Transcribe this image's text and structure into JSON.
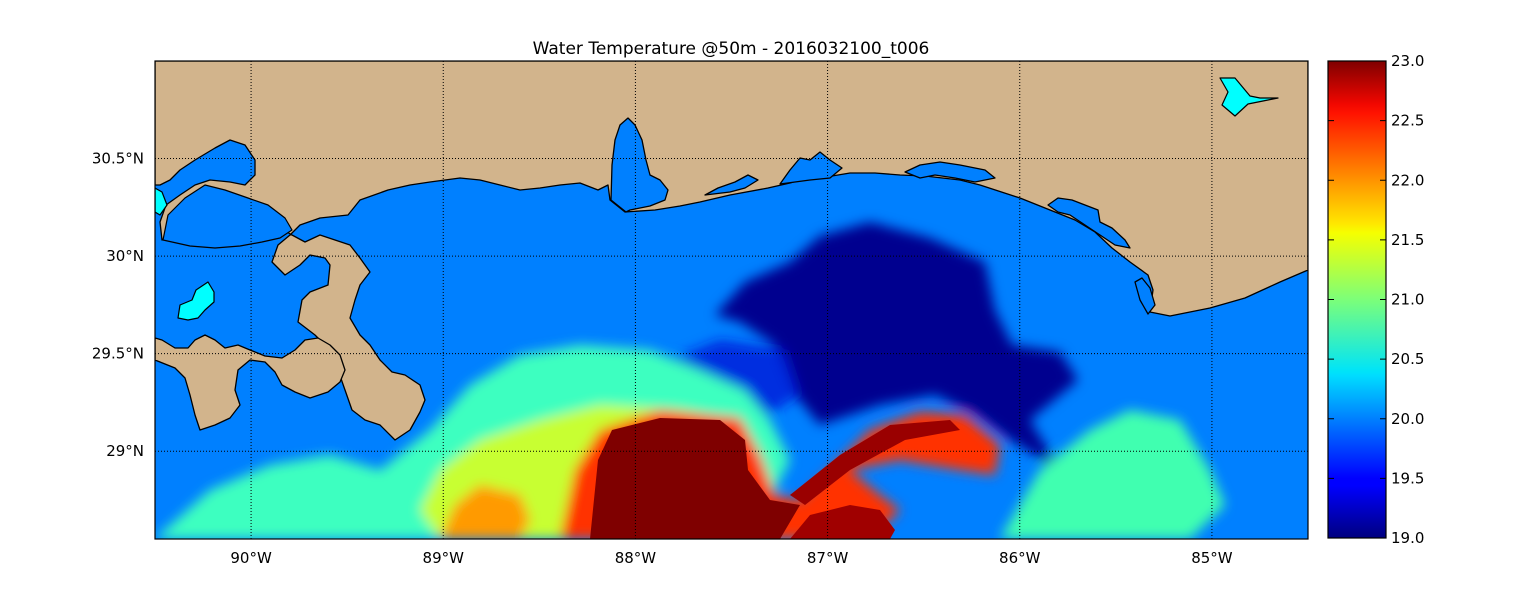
{
  "title": "Water Temperature @50m - 2016032100_t006",
  "map": {
    "lon_range": [
      -90.5,
      -84.5
    ],
    "lat_range": [
      28.55,
      31.0
    ],
    "gridlines": true,
    "land_color": "#d2b48c",
    "background_water_color": "#0080ff",
    "lake_color": "#00ffff",
    "coastline_color": "#000000",
    "lon_ticks": [
      {
        "value": -90,
        "label": "90°W"
      },
      {
        "value": -89,
        "label": "89°W"
      },
      {
        "value": -88,
        "label": "88°W"
      },
      {
        "value": -87,
        "label": "87°W"
      },
      {
        "value": -86,
        "label": "86°W"
      },
      {
        "value": -85,
        "label": "85°W"
      }
    ],
    "lat_ticks": [
      {
        "value": 30.5,
        "label": "30.5°N"
      },
      {
        "value": 30.0,
        "label": "30°N"
      },
      {
        "value": 29.5,
        "label": "29.5°N"
      },
      {
        "value": 29.0,
        "label": "29°N"
      }
    ]
  },
  "colorbar": {
    "colormap": "jet",
    "min": 19.0,
    "max": 23.0,
    "ticks": [
      "19.0",
      "19.5",
      "20.0",
      "20.5",
      "21.0",
      "21.5",
      "22.0",
      "22.5",
      "23.0"
    ]
  }
}
